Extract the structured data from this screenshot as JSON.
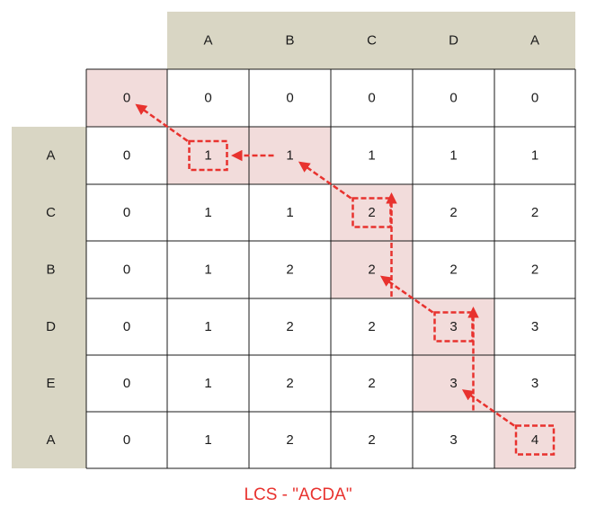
{
  "string_x": [
    "A",
    "B",
    "C",
    "D",
    "A"
  ],
  "string_y": [
    "A",
    "C",
    "B",
    "D",
    "E",
    "A"
  ],
  "matrix": [
    [
      "0",
      "0",
      "0",
      "0",
      "0",
      "0"
    ],
    [
      "0",
      "1",
      "1",
      "1",
      "1",
      "1"
    ],
    [
      "0",
      "1",
      "1",
      "2",
      "2",
      "2"
    ],
    [
      "0",
      "1",
      "2",
      "2",
      "2",
      "2"
    ],
    [
      "0",
      "1",
      "2",
      "2",
      "3",
      "3"
    ],
    [
      "0",
      "1",
      "2",
      "2",
      "3",
      "3"
    ],
    [
      "0",
      "1",
      "2",
      "2",
      "3",
      "4"
    ]
  ],
  "highlighted_cells": [
    [
      0,
      0
    ],
    [
      1,
      1
    ],
    [
      1,
      2
    ],
    [
      2,
      3
    ],
    [
      3,
      3
    ],
    [
      4,
      4
    ],
    [
      5,
      4
    ],
    [
      6,
      5
    ]
  ],
  "boxed_cells": [
    [
      1,
      1
    ],
    [
      2,
      3
    ],
    [
      4,
      4
    ],
    [
      6,
      5
    ]
  ],
  "traceback_path": [
    [
      6,
      5
    ],
    [
      5,
      4
    ],
    [
      4,
      4
    ],
    [
      3,
      3
    ],
    [
      2,
      3
    ],
    [
      1,
      2
    ],
    [
      1,
      1
    ],
    [
      0,
      0
    ]
  ],
  "caption": "LCS - \"ACDA\"",
  "colors": {
    "header_bg": "#d9d6c4",
    "highlight_bg": "#f2dcdb",
    "grid_line": "#1a1a1a",
    "arrow": "#e8322e",
    "caption": "#e8322e"
  }
}
